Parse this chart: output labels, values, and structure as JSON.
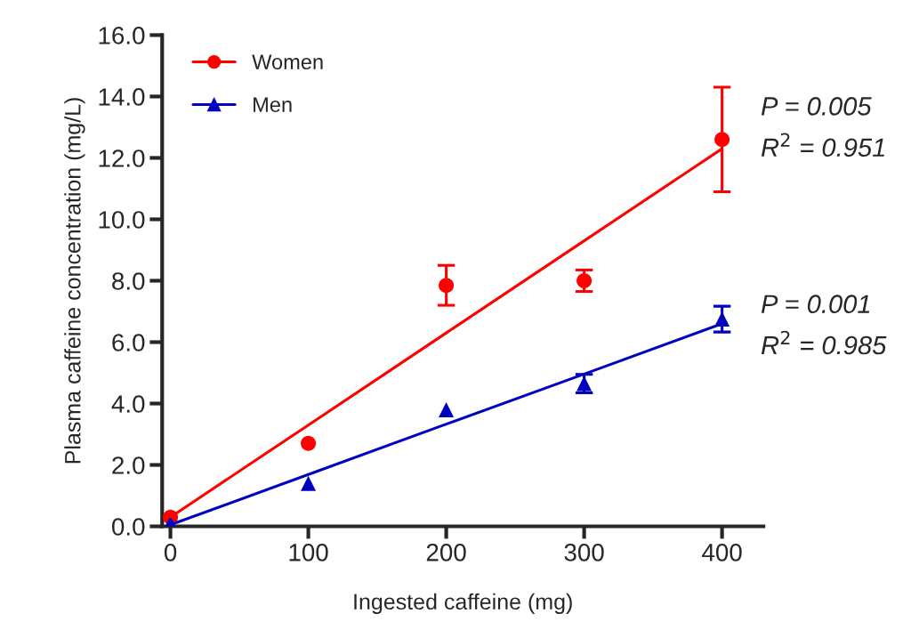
{
  "chart_data": {
    "type": "scatter",
    "xlabel": "Ingested caffeine (mg)",
    "ylabel": "Plasma caffeine concentration (mg/L)",
    "x": [
      0,
      100,
      200,
      300,
      400
    ],
    "series": [
      {
        "name": "Women",
        "color": "#ff0000",
        "marker": "circle",
        "values": [
          0.3,
          2.7,
          7.85,
          8.0,
          12.6
        ],
        "errors": [
          null,
          null,
          0.65,
          0.35,
          1.7
        ]
      },
      {
        "name": "Men",
        "color": "#0000c0",
        "marker": "triangle",
        "values": [
          0.1,
          1.4,
          3.8,
          4.65,
          6.75
        ],
        "errors": [
          null,
          null,
          null,
          0.3,
          0.42
        ]
      },
      {
        "type": "line",
        "color": "#ff0000",
        "values": [
          0.3,
          3.3,
          6.3,
          9.3,
          12.3
        ]
      },
      {
        "type": "line",
        "color": "#0000c0",
        "values": [
          0.05,
          1.69,
          3.33,
          4.96,
          6.6
        ]
      }
    ],
    "annotations": [
      "P = 0.005",
      "R$^{2}$ = 0.951",
      "P = 0.001",
      "R$^{2}$ = 0.985"
    ],
    "xlim": [
      -6,
      430
    ],
    "xticks": [
      0,
      100,
      200,
      300,
      400
    ],
    "ylim": [
      0,
      16
    ],
    "yticks": [
      {
        "value": 0,
        "label": "0.0"
      },
      {
        "value": 2,
        "label": "2.0"
      },
      {
        "value": 4,
        "label": "4.0"
      },
      {
        "value": 6,
        "label": "6.0"
      },
      {
        "value": 8,
        "label": "8.0"
      },
      {
        "value": 10,
        "label": "10.0"
      },
      {
        "value": 12,
        "label": "12.0"
      },
      {
        "value": 14,
        "label": "14.0"
      },
      {
        "value": 16,
        "label": "16.0"
      }
    ],
    "grid": false,
    "legend": "top left"
  }
}
